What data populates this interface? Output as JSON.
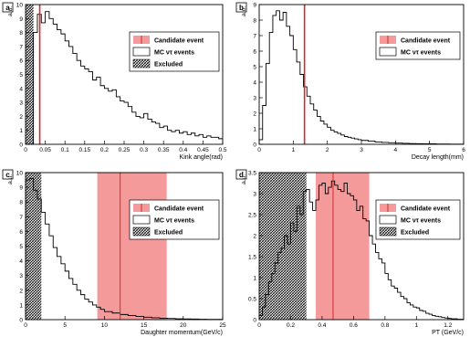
{
  "figure": {
    "panels": [
      "a",
      "b",
      "c",
      "d"
    ]
  },
  "chart_data": [
    {
      "panel": "a",
      "type": "histogram",
      "ylabel": "a.u.",
      "xlabel": "Kink angle(rad)",
      "xlim": [
        0.0,
        0.5
      ],
      "ylim": [
        0,
        10
      ],
      "xticks": [
        0,
        0.05,
        0.1,
        0.15,
        0.2,
        0.25,
        0.3,
        0.35,
        0.4,
        0.45,
        0.5
      ],
      "xticklabels": [
        "0",
        "0.05",
        "0.1",
        "0.15",
        "0.2",
        "0.25",
        "0.3",
        "0.35",
        "0.4",
        "0.45",
        "0.5"
      ],
      "yticks": [
        0,
        1,
        2,
        3,
        4,
        5,
        6,
        7,
        8,
        9,
        10
      ],
      "yticklabels": [
        "0",
        "1",
        "2",
        "3",
        "4",
        "5",
        "6",
        "7",
        "8",
        "9",
        "10"
      ],
      "excluded_range": [
        0.0,
        0.02
      ],
      "candidate_value": 0.036,
      "candidate_band": null,
      "histogram": {
        "bin_edges": [
          0.0,
          0.01,
          0.02,
          0.03,
          0.04,
          0.05,
          0.06,
          0.07,
          0.08,
          0.09,
          0.1,
          0.11,
          0.12,
          0.13,
          0.14,
          0.15,
          0.16,
          0.17,
          0.18,
          0.19,
          0.2,
          0.21,
          0.22,
          0.23,
          0.24,
          0.25,
          0.26,
          0.27,
          0.28,
          0.29,
          0.3,
          0.31,
          0.32,
          0.33,
          0.34,
          0.35,
          0.36,
          0.37,
          0.38,
          0.39,
          0.4,
          0.41,
          0.42,
          0.43,
          0.44,
          0.45,
          0.46,
          0.47,
          0.48,
          0.49,
          0.5
        ],
        "values": [
          0.0,
          0.0,
          8.0,
          9.3,
          8.7,
          9.5,
          9.0,
          8.6,
          8.2,
          7.9,
          7.4,
          7.0,
          6.5,
          6.0,
          5.6,
          5.4,
          5.2,
          4.6,
          4.8,
          4.2,
          4.0,
          3.8,
          3.9,
          3.4,
          3.1,
          3.0,
          2.7,
          2.3,
          2.0,
          1.9,
          2.2,
          1.8,
          1.6,
          1.5,
          1.2,
          1.3,
          1.0,
          0.9,
          1.0,
          0.8,
          0.9,
          0.7,
          0.8,
          0.6,
          0.7,
          0.5,
          0.6,
          0.5,
          0.5,
          0.4
        ]
      },
      "legend": [
        "Candidate event",
        "MC ντ events",
        "Excluded"
      ],
      "legend_position": "top-right"
    },
    {
      "panel": "b",
      "type": "histogram",
      "ylabel": "a.u.",
      "xlabel": "Decay length(mm)",
      "xlim": [
        0,
        6
      ],
      "ylim": [
        0,
        9
      ],
      "xticks": [
        0,
        1,
        2,
        3,
        4,
        5,
        6
      ],
      "xticklabels": [
        "0",
        "1",
        "2",
        "3",
        "4",
        "5",
        "6"
      ],
      "yticks": [
        0,
        1,
        2,
        3,
        4,
        5,
        6,
        7,
        8,
        9
      ],
      "yticklabels": [
        "0",
        "1",
        "2",
        "3",
        "4",
        "5",
        "6",
        "7",
        "8",
        "9"
      ],
      "excluded_range": null,
      "candidate_value": 1.33,
      "candidate_band": null,
      "histogram": {
        "bin_edges": [
          0.0,
          0.1,
          0.2,
          0.3,
          0.4,
          0.5,
          0.6,
          0.7,
          0.8,
          0.9,
          1.0,
          1.1,
          1.2,
          1.3,
          1.4,
          1.5,
          1.6,
          1.7,
          1.8,
          1.9,
          2.0,
          2.1,
          2.2,
          2.3,
          2.4,
          2.5,
          2.6,
          2.7,
          2.8,
          2.9,
          3.0,
          3.2,
          3.4,
          3.6,
          3.8,
          4.0,
          4.2,
          4.4,
          4.6,
          4.8,
          5.0,
          5.2,
          5.4,
          5.6,
          5.8,
          6.0
        ],
        "values": [
          0.3,
          2.5,
          5.2,
          7.2,
          8.3,
          8.6,
          8.0,
          8.5,
          7.6,
          7.0,
          6.1,
          5.3,
          4.5,
          3.7,
          3.1,
          2.6,
          2.2,
          1.8,
          1.5,
          1.3,
          1.1,
          0.9,
          0.8,
          0.7,
          0.6,
          0.5,
          0.45,
          0.4,
          0.35,
          0.3,
          0.25,
          0.2,
          0.15,
          0.12,
          0.1,
          0.08,
          0.06,
          0.05,
          0.04,
          0.03,
          0.03,
          0.02,
          0.02,
          0.01,
          0.01
        ]
      },
      "legend": [
        "Candidate event",
        "MC ντ events"
      ],
      "legend_position": "top-right"
    },
    {
      "panel": "c",
      "type": "histogram",
      "ylabel": "a.u.",
      "xlabel": "Daughter momentum(GeV/c)",
      "xlim": [
        0,
        25
      ],
      "ylim": [
        0,
        10
      ],
      "xticks": [
        0,
        5,
        10,
        15,
        20,
        25
      ],
      "xticklabels": [
        "0",
        "5",
        "10",
        "15",
        "20",
        "25"
      ],
      "yticks": [
        0,
        1,
        2,
        3,
        4,
        5,
        6,
        7,
        8,
        9,
        10
      ],
      "yticklabels": [
        "0",
        "1",
        "2",
        "3",
        "4",
        "5",
        "6",
        "7",
        "8",
        "9",
        "10"
      ],
      "excluded_range": [
        0,
        2
      ],
      "candidate_value": 12.0,
      "candidate_band": [
        9.1,
        17.9
      ],
      "histogram": {
        "bin_edges": [
          0.0,
          0.5,
          1.0,
          1.5,
          2.0,
          2.5,
          3.0,
          3.5,
          4.0,
          4.5,
          5.0,
          5.5,
          6.0,
          6.5,
          7.0,
          7.5,
          8.0,
          8.5,
          9.0,
          9.5,
          10.0,
          11.0,
          12.0,
          13.0,
          14.0,
          15.0,
          16.0,
          17.0,
          18.0,
          19.0,
          20.0,
          21.0,
          22.0,
          23.0,
          24.0,
          25.0
        ],
        "values": [
          9.5,
          9.6,
          8.8,
          8.2,
          7.3,
          6.5,
          5.7,
          4.9,
          4.3,
          3.8,
          3.3,
          2.8,
          2.4,
          2.0,
          1.7,
          1.4,
          1.2,
          1.0,
          0.85,
          0.7,
          0.55,
          0.45,
          0.35,
          0.28,
          0.22,
          0.17,
          0.13,
          0.1,
          0.08,
          0.06,
          0.05,
          0.04,
          0.03,
          0.02,
          0.02
        ]
      },
      "legend": [
        "Candidate event",
        "MC ντ events",
        "Excluded"
      ],
      "legend_position": "top-right"
    },
    {
      "panel": "d",
      "type": "histogram",
      "ylabel": "a.u.",
      "xlabel": "PT (GeV/c)",
      "xlim": [
        0,
        1.3
      ],
      "ylim": [
        0,
        3.5
      ],
      "xticks": [
        0,
        0.2,
        0.4,
        0.6,
        0.8,
        1.0,
        1.2
      ],
      "xticklabels": [
        "0",
        "0.2",
        "0.4",
        "0.6",
        "0.8",
        "1",
        "1.2"
      ],
      "yticks": [
        0,
        0.5,
        1.0,
        1.5,
        2.0,
        2.5,
        3.0,
        3.5
      ],
      "yticklabels": [
        "0",
        "0.5",
        "1",
        "1.5",
        "2",
        "2.5",
        "3",
        "3.5"
      ],
      "excluded_range": [
        0,
        0.3
      ],
      "candidate_value": 0.47,
      "candidate_band": [
        0.36,
        0.7
      ],
      "histogram": {
        "bin_edges": [
          0.0,
          0.02,
          0.04,
          0.06,
          0.08,
          0.1,
          0.12,
          0.14,
          0.16,
          0.18,
          0.2,
          0.22,
          0.24,
          0.26,
          0.28,
          0.3,
          0.32,
          0.34,
          0.36,
          0.38,
          0.4,
          0.42,
          0.44,
          0.46,
          0.48,
          0.5,
          0.52,
          0.54,
          0.56,
          0.58,
          0.6,
          0.62,
          0.64,
          0.66,
          0.68,
          0.7,
          0.72,
          0.74,
          0.76,
          0.78,
          0.8,
          0.82,
          0.84,
          0.86,
          0.88,
          0.9,
          0.92,
          0.94,
          0.96,
          0.98,
          1.0,
          1.02,
          1.04,
          1.06,
          1.08,
          1.1,
          1.12,
          1.14,
          1.16,
          1.18,
          1.2,
          1.22,
          1.24,
          1.26,
          1.28,
          1.3
        ],
        "values": [
          0.1,
          0.3,
          0.6,
          0.9,
          1.1,
          1.35,
          1.6,
          1.7,
          2.0,
          1.8,
          2.3,
          2.1,
          2.7,
          2.5,
          3.05,
          3.1,
          2.8,
          2.6,
          2.85,
          3.2,
          3.25,
          3.0,
          3.15,
          3.3,
          3.2,
          3.1,
          3.05,
          3.25,
          3.0,
          2.95,
          2.85,
          2.6,
          2.7,
          2.4,
          2.35,
          2.0,
          1.8,
          1.6,
          1.45,
          1.35,
          1.1,
          0.95,
          0.8,
          0.75,
          0.65,
          0.55,
          0.5,
          0.4,
          0.35,
          0.3,
          0.28,
          0.22,
          0.2,
          0.15,
          0.13,
          0.1,
          0.08,
          0.07,
          0.05,
          0.04,
          0.03,
          0.02,
          0.02,
          0.01,
          0.01
        ]
      },
      "legend": [
        "Candidate event",
        "MC ντ events",
        "Excluded"
      ],
      "legend_position": "top-right"
    }
  ],
  "colors": {
    "candidate_line": "#d42a2a",
    "candidate_band": "#f59a9a",
    "histogram": "#000000",
    "excluded_hatch": "#000000"
  }
}
